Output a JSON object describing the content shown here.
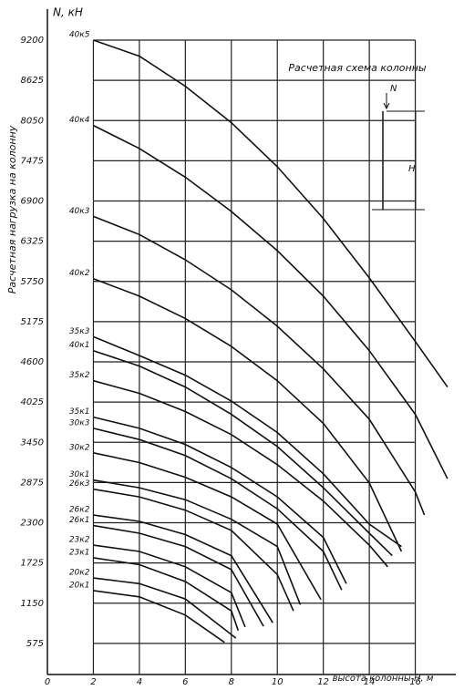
{
  "chart_data": {
    "type": "line",
    "y_label": "N, кН",
    "y_title": "Расчетная нагрузка на колонну",
    "x_label": "высота колонны H, м",
    "color": "#111111",
    "grid": true,
    "xlim": [
      0,
      18
    ],
    "xticks": [
      0,
      2,
      4,
      6,
      8,
      10,
      12,
      14,
      16
    ],
    "ylim": [
      0,
      9200
    ],
    "yticks": [
      575,
      1150,
      1725,
      2300,
      2875,
      3450,
      4025,
      4600,
      5175,
      5750,
      6325,
      6900,
      7475,
      8050,
      8625,
      9200
    ],
    "series": [
      {
        "name": "40к5",
        "x": [
          2,
          4,
          6,
          8,
          10,
          12,
          14,
          16,
          17.4
        ],
        "values": [
          9200,
          8970,
          8540,
          8020,
          7390,
          6650,
          5800,
          4890,
          4240
        ]
      },
      {
        "name": "40к4",
        "x": [
          2,
          4,
          6,
          8,
          10,
          12,
          14,
          16,
          17.4
        ],
        "values": [
          7980,
          7650,
          7240,
          6750,
          6190,
          5540,
          4760,
          3850,
          2930
        ]
      },
      {
        "name": "40к3",
        "x": [
          2,
          4,
          6,
          8,
          10,
          12,
          14,
          16,
          16.4
        ],
        "values": [
          6680,
          6420,
          6060,
          5630,
          5110,
          4500,
          3780,
          2740,
          2410
        ]
      },
      {
        "name": "40к2",
        "x": [
          2,
          4,
          6,
          8,
          10,
          12,
          14,
          15.4
        ],
        "values": [
          5790,
          5540,
          5220,
          4820,
          4330,
          3720,
          2870,
          1890
        ]
      },
      {
        "name": "35к3",
        "x": [
          2,
          4,
          6,
          8,
          10,
          12,
          14,
          15.4
        ],
        "values": [
          4960,
          4690,
          4410,
          4040,
          3590,
          3000,
          2280,
          1960
        ]
      },
      {
        "name": "40к1",
        "x": [
          2,
          4,
          6,
          8,
          10,
          12,
          14,
          15
        ],
        "values": [
          4760,
          4540,
          4240,
          3850,
          3390,
          2800,
          2150,
          1830
        ]
      },
      {
        "name": "35к2",
        "x": [
          2,
          4,
          6,
          8,
          10,
          12,
          14,
          14.8
        ],
        "values": [
          4330,
          4150,
          3890,
          3560,
          3130,
          2610,
          1980,
          1670
        ]
      },
      {
        "name": "35к1",
        "x": [
          2,
          4,
          6,
          8,
          10,
          12,
          13
        ],
        "values": [
          3810,
          3650,
          3420,
          3090,
          2670,
          2090,
          1430
        ]
      },
      {
        "name": "30к3",
        "x": [
          2,
          4,
          6,
          8,
          10,
          12,
          12.8
        ],
        "values": [
          3650,
          3490,
          3260,
          2930,
          2500,
          1890,
          1340
        ]
      },
      {
        "name": "30к2",
        "x": [
          2,
          4,
          6,
          8,
          10,
          11.9
        ],
        "values": [
          3300,
          3160,
          2950,
          2670,
          2280,
          1200
        ]
      },
      {
        "name": "30к1",
        "x": [
          2,
          4,
          6,
          8,
          10,
          11
        ],
        "values": [
          2910,
          2800,
          2630,
          2350,
          1960,
          1130
        ]
      },
      {
        "name": "26к3",
        "x": [
          2,
          4,
          6,
          8,
          10,
          10.7
        ],
        "values": [
          2780,
          2670,
          2480,
          2190,
          1560,
          1040
        ]
      },
      {
        "name": "26к2",
        "x": [
          2,
          4,
          6,
          8,
          9.8
        ],
        "values": [
          2410,
          2320,
          2130,
          1830,
          870
        ]
      },
      {
        "name": "26к1",
        "x": [
          2,
          4,
          6,
          8,
          9.4
        ],
        "values": [
          2260,
          2150,
          1960,
          1630,
          820
        ]
      },
      {
        "name": "23к2",
        "x": [
          2,
          4,
          6,
          8,
          8.6
        ],
        "values": [
          1980,
          1890,
          1670,
          1300,
          810
        ]
      },
      {
        "name": "23к1",
        "x": [
          2,
          4,
          6,
          8,
          8.3
        ],
        "values": [
          1800,
          1700,
          1460,
          1040,
          760
        ]
      },
      {
        "name": "20к2",
        "x": [
          2,
          4,
          6,
          8.2
        ],
        "values": [
          1510,
          1430,
          1210,
          650
        ]
      },
      {
        "name": "20к1",
        "x": [
          2,
          4,
          6,
          7.7
        ],
        "values": [
          1330,
          1240,
          980,
          590
        ]
      }
    ]
  },
  "schema": {
    "title": "Расчетная схема колонны",
    "n_label": "N",
    "h_label": "H"
  }
}
